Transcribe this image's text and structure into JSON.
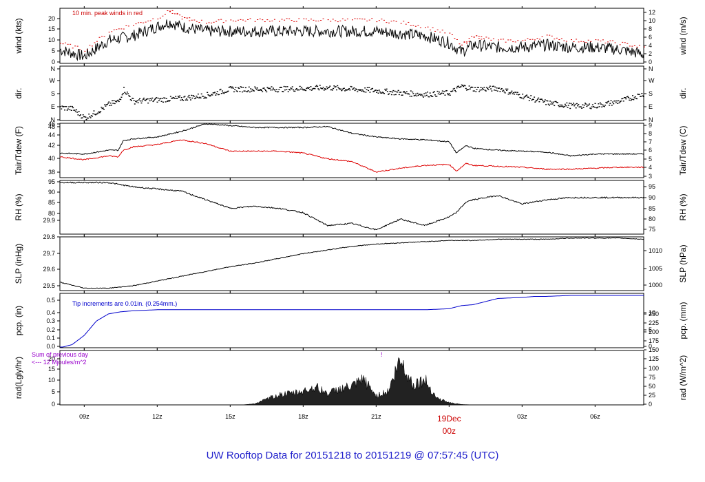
{
  "chart_data": {
    "type": "line",
    "title": "UW Rooftop Data for 20151218  to  20151219 @ 07:57:45  (UTC)",
    "x_axis": {
      "unit": "hours since 20151218 08:00Z",
      "range": [
        0,
        24
      ],
      "ticks": [
        {
          "t": 1,
          "label": "09z"
        },
        {
          "t": 4,
          "label": "12z"
        },
        {
          "t": 7,
          "label": "15z"
        },
        {
          "t": 10,
          "label": "18z"
        },
        {
          "t": 13,
          "label": "21z"
        },
        {
          "t": 16,
          "label": "19Dec",
          "label2": "00z"
        },
        {
          "t": 19,
          "label": "03z"
        },
        {
          "t": 22,
          "label": "06z"
        }
      ]
    },
    "panels": [
      {
        "id": "wind",
        "ylabel": "wind (kts)",
        "ylabel_right": "wind (m/s)",
        "ylim": [
          0,
          24
        ],
        "left_ticks": [
          "0",
          "5",
          "10",
          "15",
          "20"
        ],
        "right_ticks": [
          "0",
          "2",
          "4",
          "6",
          "8",
          "10",
          "12"
        ],
        "annotation": "10 min. peak winds in red",
        "series": [
          {
            "name": "wind",
            "color": "#000000",
            "x": [
              0,
              1,
              2,
              3,
              4,
              4.5,
              5,
              6,
              7,
              8,
              9,
              10,
              11,
              12,
              13,
              14,
              15,
              16,
              16.5,
              17,
              18,
              19,
              20,
              21,
              22,
              23,
              24
            ],
            "y": [
              6,
              3,
              10,
              12,
              16,
              18,
              16,
              14,
              14,
              14,
              14,
              14,
              14,
              14,
              14,
              13,
              12,
              9,
              5,
              8,
              7,
              7,
              8,
              7,
              7,
              6,
              4
            ]
          },
          {
            "name": "10 min. peak winds",
            "color": "#dd0000",
            "style": "points",
            "x": [
              0,
              1,
              2,
              3,
              4,
              4.5,
              5,
              6,
              7,
              8,
              9,
              10,
              11,
              12,
              13,
              14,
              15,
              16,
              16.5,
              17,
              18,
              19,
              20,
              21,
              22,
              23,
              24
            ],
            "y": [
              9,
              6,
              14,
              17,
              20,
              23,
              20,
              18,
              19,
              19,
              19,
              19,
              19,
              19,
              19,
              18,
              16,
              13,
              8,
              12,
              10,
              10,
              12,
              10,
              10,
              9,
              7
            ]
          }
        ]
      },
      {
        "id": "dir",
        "ylabel": "dir.",
        "ylabel_right": "dir.",
        "ylim": [
          0,
          360
        ],
        "left_ticks": [
          "N",
          "E",
          "S",
          "W",
          "N"
        ],
        "right_ticks": [
          "N",
          "E",
          "S",
          "W",
          "N"
        ],
        "series": [
          {
            "name": "direction",
            "color": "#000000",
            "style": "points",
            "x": [
              0,
              0.5,
              1,
              1.5,
              2,
              2.4,
              2.6,
              3,
              4,
              5,
              6,
              7,
              8,
              9,
              10,
              11,
              12,
              13,
              14,
              15,
              16,
              16.5,
              17,
              18,
              19,
              20,
              21,
              22,
              23,
              24
            ],
            "y": [
              90,
              80,
              20,
              60,
              110,
              130,
              210,
              130,
              140,
              150,
              170,
              210,
              210,
              210,
              215,
              220,
              210,
              200,
              185,
              175,
              185,
              230,
              210,
              215,
              165,
              120,
              100,
              100,
              130,
              180
            ]
          }
        ]
      },
      {
        "id": "temp",
        "ylabel": "Tair/Tdew (F)",
        "ylabel_right": "Tair/Tdew (C)",
        "ylim": [
          37,
          48.5
        ],
        "left_ticks": [
          "38",
          "40",
          "42",
          "44",
          "46",
          "48"
        ],
        "right_ticks": [
          "3",
          "4",
          "5",
          "6",
          "7",
          "8",
          "9"
        ],
        "series": [
          {
            "name": "Tair",
            "color": "#000000",
            "x": [
              0,
              1,
              2,
              2.4,
              2.6,
              3,
              4,
              5,
              6,
              7,
              8,
              9,
              10,
              11,
              12,
              13,
              14,
              15,
              16,
              16.3,
              16.7,
              17,
              18,
              19,
              20,
              21,
              22,
              23,
              24
            ],
            "y": [
              42.2,
              42,
              42.8,
              42.8,
              44.8,
              45.2,
              45.6,
              46.8,
              48.4,
              48,
              47.6,
              47.6,
              47.6,
              47.8,
              46.4,
              45.6,
              45.2,
              45,
              44.6,
              42.2,
              43.8,
              43.2,
              42.8,
              42.6,
              42.4,
              41.6,
              42,
              42,
              42
            ]
          },
          {
            "name": "Tdew",
            "color": "#dd0000",
            "x": [
              0,
              1,
              2,
              2.4,
              2.6,
              3,
              4,
              5,
              6,
              7,
              8,
              9,
              10,
              11,
              12,
              13,
              14,
              15,
              16,
              16.3,
              16.7,
              17,
              18,
              19,
              20,
              21,
              22,
              23,
              24
            ],
            "y": [
              41.4,
              40.8,
              41.6,
              41.4,
              42.8,
              43.5,
              44,
              45,
              44.2,
              42.6,
              42.6,
              42.6,
              42.2,
              41,
              40.4,
              38.2,
              39,
              39.6,
              39.8,
              38.4,
              40,
              39.6,
              39.4,
              39.2,
              38.8,
              38.8,
              39,
              39.2,
              39.2
            ]
          }
        ]
      },
      {
        "id": "rh",
        "ylabel": "RH (%)",
        "ylabel_right": "RH (%)",
        "ylim": [
          72,
          97
        ],
        "left_ticks": [
          "80",
          "85",
          "90",
          "95"
        ],
        "right_ticks": [
          "75",
          "80",
          "85",
          "90",
          "95"
        ],
        "series": [
          {
            "name": "RH",
            "color": "#000000",
            "x": [
              0,
              1,
              2,
              3,
              4,
              5,
              6,
              7,
              8,
              9,
              10,
              11,
              12,
              13,
              14,
              15,
              16,
              16.3,
              16.7,
              17,
              18,
              19,
              20,
              21,
              22,
              23,
              24
            ],
            "y": [
              96,
              96,
              96,
              94,
              93,
              92,
              88,
              84,
              85,
              84,
              82,
              76,
              77,
              74,
              79,
              76,
              80,
              82,
              87,
              88,
              90,
              86,
              88,
              89,
              89,
              89,
              89
            ]
          }
        ]
      },
      {
        "id": "slp",
        "ylabel": "SLP (inHg)",
        "ylabel_right": "SLP (hPa)",
        "ylim": [
          29.48,
          29.93
        ],
        "left_ticks": [
          "29.5",
          "29.6",
          "29.7",
          "29.8",
          "29.9"
        ],
        "right_ticks": [
          "1000",
          "1005",
          "1010"
        ],
        "series": [
          {
            "name": "SLP",
            "color": "#000000",
            "x": [
              0,
              1,
              2,
              3,
              4,
              5,
              6,
              7,
              8,
              9,
              10,
              11,
              12,
              13,
              14,
              15,
              16,
              17,
              18,
              19,
              20,
              21,
              22,
              23,
              24
            ],
            "y": [
              29.55,
              29.5,
              29.5,
              29.52,
              29.56,
              29.6,
              29.64,
              29.68,
              29.71,
              29.75,
              29.79,
              29.82,
              29.85,
              29.87,
              29.88,
              29.89,
              29.9,
              29.9,
              29.91,
              29.91,
              29.91,
              29.92,
              29.92,
              29.92,
              29.91
            ]
          }
        ]
      },
      {
        "id": "pcp",
        "ylabel": "pcp. (in)",
        "ylabel_right": "pcp. (mm)",
        "ylim": [
          0,
          0.53
        ],
        "left_ticks": [
          "0.0",
          "0.1",
          "0.2",
          "0.3",
          "0.4",
          "0.5"
        ],
        "right_ticks": [
          "0",
          "5",
          "10"
        ],
        "annotation": "Tip increments are 0.01in. (0.254mm.)",
        "series": [
          {
            "name": "precip",
            "color": "#0000cc",
            "x": [
              0,
              0.5,
              1,
              1.5,
              2,
              2.5,
              3,
              4,
              5,
              6,
              7,
              8,
              9,
              10,
              11,
              12,
              13,
              14,
              15,
              16,
              16.5,
              17,
              18,
              19,
              19.5,
              20,
              21,
              22,
              23,
              24
            ],
            "y": [
              0,
              0.03,
              0.12,
              0.26,
              0.33,
              0.35,
              0.36,
              0.37,
              0.37,
              0.37,
              0.37,
              0.37,
              0.37,
              0.37,
              0.37,
              0.37,
              0.37,
              0.37,
              0.37,
              0.38,
              0.41,
              0.42,
              0.48,
              0.49,
              0.5,
              0.5,
              0.51,
              0.51,
              0.51,
              0.51
            ]
          }
        ]
      },
      {
        "id": "rad",
        "ylabel": "rad(Lgly/hr)",
        "ylabel_right": "rad (W/m^2)",
        "ylim": [
          0,
          24
        ],
        "left_ticks": [
          "0",
          "5",
          "10",
          "15",
          "20"
        ],
        "right_ticks": [
          "0",
          "25",
          "50",
          "75",
          "100",
          "125",
          "150",
          "175",
          "200",
          "225",
          "250"
        ],
        "annotation": "Sum of previous day",
        "annotation2": "<--- 12 Mjoules/m^2",
        "marker": "!",
        "series": [
          {
            "name": "radiation",
            "color": "#000000",
            "style": "area",
            "x": [
              0,
              7,
              7.5,
              8,
              8.5,
              9,
              9.5,
              10,
              10.5,
              11,
              11.5,
              12,
              12.5,
              13,
              13.5,
              14,
              14.5,
              15,
              15.5,
              16,
              16.5,
              17,
              24
            ],
            "y": [
              0,
              0,
              0,
              0.5,
              2.5,
              4.5,
              5,
              6,
              8,
              5,
              7,
              8,
              11,
              4,
              6,
              20,
              9,
              11,
              3,
              1,
              0.2,
              0,
              0
            ]
          }
        ]
      }
    ]
  }
}
